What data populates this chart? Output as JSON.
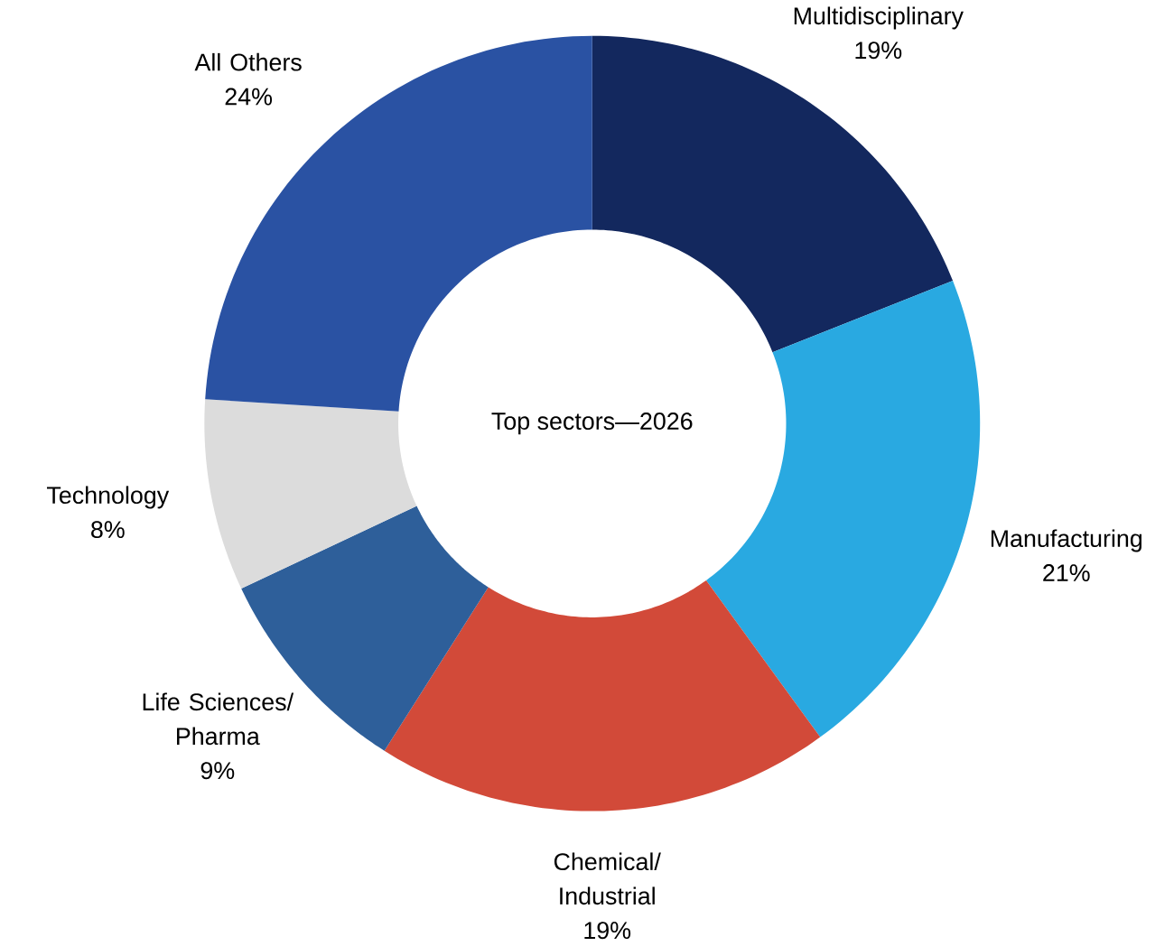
{
  "chart_data": {
    "type": "donut",
    "title": "Top sectors—2026",
    "categories": [
      "Multidisciplinary",
      "Manufacturing",
      "Chemical/ Industrial",
      "Life Sciences/ Pharma",
      "Technology",
      "All Others"
    ],
    "values": [
      19,
      21,
      19,
      9,
      8,
      24
    ],
    "value_labels": [
      "19%",
      "21%",
      "19%",
      "9%",
      "8%",
      "24%"
    ],
    "colors": [
      "#13285e",
      "#29a9e1",
      "#d24a39",
      "#2e5f9a",
      "#dcdcdc",
      "#2a52a3"
    ]
  }
}
